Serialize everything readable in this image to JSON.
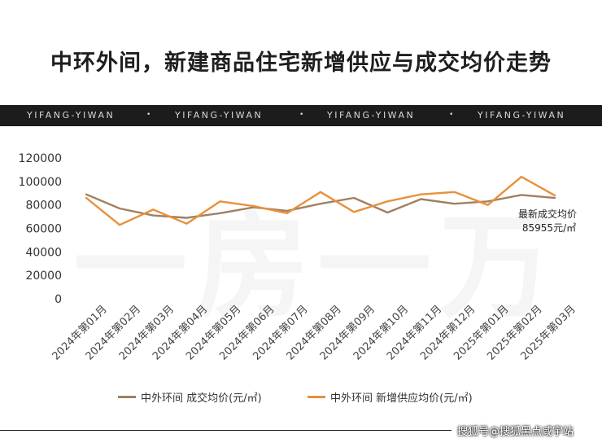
{
  "title": "中环外间，新建商品住宅新增供应与成交均价走势",
  "banner": {
    "text": "YIFANG-YIWAN",
    "separator": "•"
  },
  "watermark": "一房一万",
  "source": "搜狐号@搜狐黑点咸宇站",
  "colors": {
    "deal_line": "#a08060",
    "supply_line": "#e8913a",
    "axis_text": "#333333"
  },
  "chart_data": {
    "type": "line",
    "title": "中环外间，新建商品住宅新增供应与成交均价走势",
    "xlabel": "",
    "ylabel": "",
    "ylim": [
      0,
      120000
    ],
    "yticks": [
      "0",
      "20000",
      "40000",
      "60000",
      "80000",
      "100000",
      "120000"
    ],
    "grid": false,
    "legend_position": "bottom",
    "categories": [
      "2024年第01月",
      "2024年第02月",
      "2024年第03月",
      "2024年第04月",
      "2024年第05月",
      "2024年第06月",
      "2024年第07月",
      "2024年第08月",
      "2024年第09月",
      "2024年第10月",
      "2024年第11月",
      "2024年第12月",
      "2025年第01月",
      "2025年第02月",
      "2025年第03月"
    ],
    "series": [
      {
        "name": "中外环间 成交均价(元/㎡)",
        "values": [
          89000,
          77000,
          71000,
          69000,
          73000,
          78000,
          75000,
          81000,
          86000,
          73500,
          85000,
          81000,
          83000,
          88500,
          85955
        ]
      },
      {
        "name": "中外环间 新增供应均价(元/㎡)",
        "values": [
          86000,
          63000,
          76000,
          64000,
          83000,
          79000,
          73000,
          91000,
          74000,
          83000,
          89000,
          91000,
          80000,
          104000,
          88000
        ]
      }
    ],
    "annotation": {
      "line1": "最新成交均价",
      "line2": "85955元/㎡"
    }
  }
}
